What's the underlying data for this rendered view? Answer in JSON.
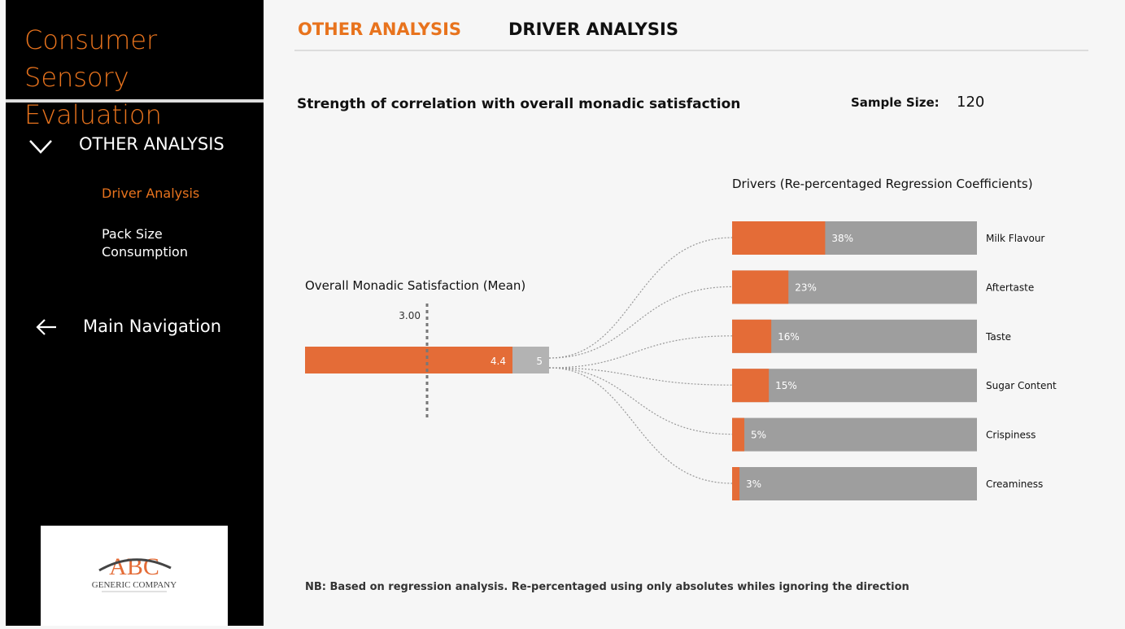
{
  "sidebar": {
    "title_line1": "Consumer Sensory",
    "title_line2": "Evaluation",
    "section": "OTHER ANALYSIS",
    "items": [
      {
        "label": "Driver Analysis",
        "active": true
      },
      {
        "label": "Pack Size Consumption",
        "active": false
      }
    ],
    "main_nav": "Main Navigation",
    "logo_text": "ABC GENERIC COMPANY"
  },
  "tabs": [
    {
      "label": "OTHER ANALYSIS",
      "active": true
    },
    {
      "label": "DRIVER ANALYSIS",
      "active": false
    }
  ],
  "heading": "Strength of correlation with overall monadic satisfaction",
  "sample_size": {
    "label": "Sample Size:",
    "value": "120"
  },
  "footnote": "NB: Based on regression analysis.  Re-percentaged using only absolutes whiles ignoring the direction",
  "colors": {
    "accent": "#e46c37",
    "gray": "#9e9e9e",
    "light_gray": "#b3b3b3"
  },
  "chart_data": [
    {
      "type": "bar",
      "title": "Overall Monadic Satisfaction (Mean)",
      "value": 4.4,
      "max": 5,
      "value_label": "4.4",
      "max_label": "5",
      "reference_line": 3.0,
      "reference_label": "3.00",
      "xlim": [
        1,
        5
      ]
    },
    {
      "type": "bar",
      "title": "Drivers (Re-percentaged Regression Coefficients)",
      "categories": [
        "Milk Flavour",
        "Aftertaste",
        "Taste",
        "Sugar Content",
        "Crispiness",
        "Creaminess"
      ],
      "values": [
        38,
        23,
        16,
        15,
        5,
        3
      ],
      "labels": [
        "38%",
        "23%",
        "16%",
        "15%",
        "5%",
        "3%"
      ],
      "xlim": [
        0,
        100
      ]
    }
  ]
}
